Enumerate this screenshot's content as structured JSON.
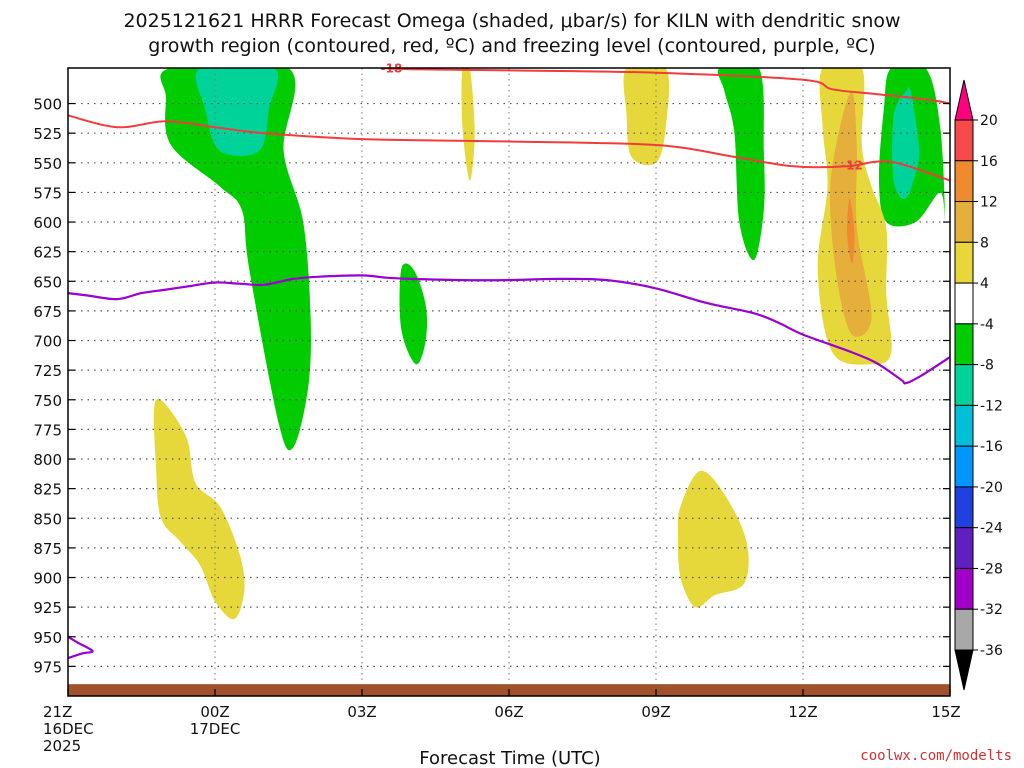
{
  "chart_data": {
    "type": "time-height cross section",
    "title_line1": "2025121621 HRRR Forecast Omega (shaded, μbar/s) for KILN with dendritic snow",
    "title_line2": "growth region (contoured, red, ºC) and freezing level (contoured, purple, ºC)",
    "xlabel": "Forecast Time (UTC)",
    "credit": "coolwx.com/modelts",
    "x_range_hours": [
      0,
      18
    ],
    "y_range_hpa": [
      470,
      1000
    ],
    "x_ticks": [
      {
        "hour": 0,
        "lines": [
          "21Z",
          "16DEC",
          "2025"
        ]
      },
      {
        "hour": 3,
        "lines": [
          "00Z",
          "17DEC"
        ]
      },
      {
        "hour": 6,
        "lines": [
          "03Z"
        ]
      },
      {
        "hour": 9,
        "lines": [
          "06Z"
        ]
      },
      {
        "hour": 12,
        "lines": [
          "09Z"
        ]
      },
      {
        "hour": 15,
        "lines": [
          "12Z"
        ]
      },
      {
        "hour": 18,
        "lines": [
          "15Z"
        ]
      }
    ],
    "y_ticks": [
      500,
      525,
      550,
      575,
      600,
      625,
      650,
      675,
      700,
      725,
      750,
      775,
      800,
      825,
      850,
      875,
      900,
      925,
      950,
      975
    ],
    "colorbar": [
      {
        "label": "20",
        "color": "#ff007f"
      },
      {
        "label": "16",
        "color": "#f84a4a"
      },
      {
        "label": "12",
        "color": "#ef8a2e"
      },
      {
        "label": "8",
        "color": "#e6ae3a"
      },
      {
        "label": "4",
        "color": "#e6d83a"
      },
      {
        "label": "-4",
        "color": "#ffffff"
      },
      {
        "label": "-8",
        "color": "#00cc00"
      },
      {
        "label": "-12",
        "color": "#00d39a"
      },
      {
        "label": "-16",
        "color": "#00c0d8"
      },
      {
        "label": "-20",
        "color": "#0096ff"
      },
      {
        "label": "-24",
        "color": "#2040e0"
      },
      {
        "label": "-28",
        "color": "#6020c0"
      },
      {
        "label": "-32",
        "color": "#a000c8"
      },
      {
        "label": "-36",
        "color": "#a8a8a8"
      },
      {
        "label": "",
        "color": "#000000"
      }
    ],
    "omega_regions": [
      {
        "level": "-8",
        "color": "#00cc00",
        "points": [
          [
            2.1,
            470
          ],
          [
            4.5,
            470
          ],
          [
            4.4,
            540
          ],
          [
            4.8,
            600
          ],
          [
            4.95,
            680
          ],
          [
            4.9,
            740
          ],
          [
            4.6,
            790
          ],
          [
            4.3,
            770
          ],
          [
            3.7,
            640
          ],
          [
            3.55,
            590
          ],
          [
            3.1,
            570
          ],
          [
            2.1,
            535
          ],
          [
            2.0,
            495
          ]
        ]
      },
      {
        "level": "-12",
        "color": "#00d39a",
        "points": [
          [
            2.7,
            470
          ],
          [
            4.2,
            470
          ],
          [
            4.1,
            505
          ],
          [
            3.9,
            540
          ],
          [
            3.1,
            540
          ],
          [
            2.8,
            505
          ]
        ]
      },
      {
        "level": "-8",
        "color": "#00cc00",
        "points": [
          [
            6.8,
            640
          ],
          [
            7.05,
            640
          ],
          [
            7.3,
            670
          ],
          [
            7.3,
            700
          ],
          [
            7.1,
            720
          ],
          [
            6.8,
            690
          ]
        ]
      },
      {
        "level": "-8",
        "color": "#00cc00",
        "points": [
          [
            13.3,
            470
          ],
          [
            14.1,
            470
          ],
          [
            14.2,
            540
          ],
          [
            14.2,
            590
          ],
          [
            14.0,
            632
          ],
          [
            13.7,
            600
          ],
          [
            13.6,
            525
          ],
          [
            13.4,
            490
          ]
        ]
      },
      {
        "level": "-8",
        "color": "#00cc00",
        "points": [
          [
            16.8,
            470
          ],
          [
            17.5,
            470
          ],
          [
            17.8,
            520
          ],
          [
            17.9,
            600
          ],
          [
            17.8,
            575
          ],
          [
            17.3,
            600
          ],
          [
            16.7,
            600
          ],
          [
            16.55,
            565
          ],
          [
            16.65,
            505
          ]
        ]
      },
      {
        "level": "-12",
        "color": "#00d39a",
        "points": [
          [
            17.1,
            490
          ],
          [
            17.2,
            490
          ],
          [
            17.35,
            530
          ],
          [
            17.35,
            550
          ],
          [
            17.1,
            580
          ],
          [
            16.85,
            565
          ],
          [
            16.85,
            510
          ]
        ]
      },
      {
        "level": "4",
        "color": "#e6d83a",
        "points": [
          [
            11.4,
            470
          ],
          [
            12.2,
            470
          ],
          [
            12.2,
            520
          ],
          [
            12.0,
            550
          ],
          [
            11.5,
            545
          ],
          [
            11.4,
            510
          ]
        ]
      },
      {
        "level": "4",
        "color": "#e6d83a",
        "points": [
          [
            15.4,
            470
          ],
          [
            16.2,
            470
          ],
          [
            16.2,
            535
          ],
          [
            16.4,
            570
          ],
          [
            16.7,
            605
          ],
          [
            16.7,
            660
          ],
          [
            16.8,
            710
          ],
          [
            16.4,
            720
          ],
          [
            15.6,
            710
          ],
          [
            15.3,
            640
          ],
          [
            15.5,
            570
          ],
          [
            15.4,
            520
          ]
        ]
      },
      {
        "level": "8",
        "color": "#e6ae3a",
        "points": [
          [
            15.7,
            530
          ],
          [
            16.0,
            490
          ],
          [
            16.1,
            540
          ],
          [
            16.1,
            605
          ],
          [
            16.4,
            680
          ],
          [
            16.0,
            695
          ],
          [
            15.7,
            650
          ],
          [
            15.55,
            580
          ]
        ]
      },
      {
        "level": "12",
        "color": "#ef8a2e",
        "points": [
          [
            15.9,
            610
          ],
          [
            15.95,
            580
          ],
          [
            16.05,
            610
          ],
          [
            16.0,
            635
          ]
        ]
      },
      {
        "level": "4",
        "color": "#e6d83a",
        "points": [
          [
            8.05,
            470
          ],
          [
            8.2,
            470
          ],
          [
            8.3,
            525
          ],
          [
            8.2,
            565
          ],
          [
            8.05,
            520
          ]
        ]
      },
      {
        "level": "4",
        "color": "#e6d83a",
        "points": [
          [
            1.8,
            750
          ],
          [
            2.4,
            780
          ],
          [
            2.6,
            820
          ],
          [
            3.1,
            840
          ],
          [
            3.5,
            880
          ],
          [
            3.6,
            910
          ],
          [
            3.4,
            935
          ],
          [
            3.0,
            920
          ],
          [
            2.7,
            890
          ],
          [
            2.3,
            870
          ],
          [
            1.9,
            850
          ],
          [
            1.8,
            810
          ]
        ]
      },
      {
        "level": "4",
        "color": "#e6d83a",
        "points": [
          [
            12.5,
            840
          ],
          [
            12.9,
            810
          ],
          [
            13.4,
            830
          ],
          [
            13.85,
            870
          ],
          [
            13.8,
            905
          ],
          [
            13.2,
            915
          ],
          [
            12.8,
            925
          ],
          [
            12.5,
            900
          ],
          [
            12.45,
            865
          ]
        ]
      }
    ],
    "surface_band_hpa": [
      990,
      1000
    ],
    "surface_color": "#a0522d",
    "dgz_contours": [
      {
        "label": "-18",
        "label_at_hour": 6.6,
        "points": [
          [
            6.4,
            470
          ],
          [
            7.0,
            471
          ],
          [
            9.0,
            472
          ],
          [
            12.0,
            474
          ],
          [
            15.0,
            480
          ],
          [
            15.6,
            488
          ],
          [
            16.5,
            492
          ],
          [
            17.6,
            497
          ],
          [
            18.0,
            500
          ]
        ]
      },
      {
        "label": "-12",
        "label_at_hour": 16.0,
        "points": [
          [
            0.0,
            510
          ],
          [
            1.0,
            520
          ],
          [
            2.0,
            515
          ],
          [
            3.0,
            520
          ],
          [
            4.0,
            525
          ],
          [
            6.0,
            530
          ],
          [
            9.0,
            532
          ],
          [
            12.0,
            535
          ],
          [
            13.6,
            545
          ],
          [
            14.8,
            553
          ],
          [
            15.9,
            553
          ],
          [
            16.5,
            549
          ],
          [
            17.0,
            551
          ],
          [
            18.0,
            565
          ]
        ]
      }
    ],
    "freezing_contours": [
      {
        "points": [
          [
            0.0,
            660
          ],
          [
            0.4,
            662
          ],
          [
            1.0,
            665
          ],
          [
            1.5,
            660
          ],
          [
            2.0,
            657
          ],
          [
            2.5,
            654
          ],
          [
            3.0,
            651
          ],
          [
            3.5,
            652
          ],
          [
            4.0,
            653
          ],
          [
            4.6,
            648
          ],
          [
            5.2,
            646
          ],
          [
            6.0,
            645
          ],
          [
            6.5,
            647
          ],
          [
            7.0,
            648
          ],
          [
            8.0,
            649
          ],
          [
            9.0,
            649
          ],
          [
            10.0,
            648
          ],
          [
            11.0,
            649
          ],
          [
            12.0,
            656
          ],
          [
            13.0,
            668
          ],
          [
            14.0,
            677
          ],
          [
            14.5,
            685
          ],
          [
            15.0,
            695
          ],
          [
            16.0,
            710
          ],
          [
            16.5,
            719
          ],
          [
            17.0,
            733
          ],
          [
            17.1,
            736
          ],
          [
            17.4,
            730
          ],
          [
            18.0,
            714
          ]
        ]
      },
      {
        "points": [
          [
            0.0,
            950
          ],
          [
            0.2,
            955
          ],
          [
            0.5,
            962
          ],
          [
            0.3,
            964
          ],
          [
            0.0,
            968
          ]
        ]
      }
    ]
  }
}
